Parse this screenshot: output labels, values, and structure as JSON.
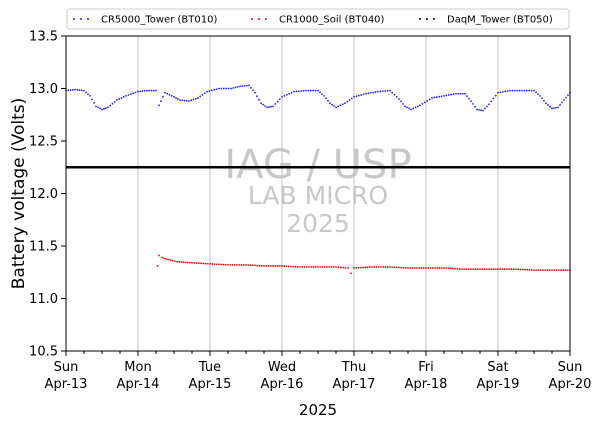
{
  "chart_data": {
    "type": "scatter",
    "xlabel": "2025",
    "ylabel": "Battery voltage (Volts)",
    "xlim": [
      "2025-04-13",
      "2025-04-20"
    ],
    "ylim": [
      10.5,
      13.5
    ],
    "yticks": [
      "10.5",
      "11.0",
      "11.5",
      "12.0",
      "12.5",
      "13.0",
      "13.5"
    ],
    "x_grid": true,
    "y_grid": false,
    "legend_position": "top",
    "xticks": [
      {
        "date": "2025-04-13",
        "day": "Sun",
        "label": "Apr-13"
      },
      {
        "date": "2025-04-14",
        "day": "Mon",
        "label": "Apr-14"
      },
      {
        "date": "2025-04-15",
        "day": "Tue",
        "label": "Apr-15"
      },
      {
        "date": "2025-04-16",
        "day": "Wed",
        "label": "Apr-16"
      },
      {
        "date": "2025-04-17",
        "day": "Thu",
        "label": "Apr-17"
      },
      {
        "date": "2025-04-18",
        "day": "Fri",
        "label": "Apr-18"
      },
      {
        "date": "2025-04-19",
        "day": "Sat",
        "label": "Apr-19"
      },
      {
        "date": "2025-04-20",
        "day": "Sun",
        "label": "Apr-20"
      }
    ],
    "reference_line": {
      "y": 12.25,
      "color": "#000000"
    },
    "watermark": [
      "IAG / USP",
      "LAB MICRO",
      "2025"
    ],
    "series": [
      {
        "name": "CR5000_Tower (BT010)",
        "color": "#1f1fff",
        "points": [
          [
            "2025-04-13 00:00",
            12.98
          ],
          [
            "2025-04-13 03:00",
            12.99
          ],
          [
            "2025-04-13 06:00",
            12.98
          ],
          [
            "2025-04-13 08:00",
            12.93
          ],
          [
            "2025-04-13 10:00",
            12.83
          ],
          [
            "2025-04-13 12:00",
            12.8
          ],
          [
            "2025-04-13 14:00",
            12.82
          ],
          [
            "2025-04-13 17:00",
            12.89
          ],
          [
            "2025-04-13 20:00",
            12.93
          ],
          [
            "2025-04-14 00:00",
            12.97
          ],
          [
            "2025-04-14 03:00",
            12.98
          ],
          [
            "2025-04-14 06:00",
            12.98
          ],
          [
            "2025-04-14 09:00",
            12.96
          ],
          [
            "2025-04-14 12:00",
            12.92
          ],
          [
            "2025-04-14 14:00",
            12.89
          ],
          [
            "2025-04-14 17:00",
            12.88
          ],
          [
            "2025-04-14 20:00",
            12.91
          ],
          [
            "2025-04-14 23:00",
            12.97
          ],
          [
            "2025-04-15 03:00",
            13.0
          ],
          [
            "2025-04-15 07:00",
            13.0
          ],
          [
            "2025-04-15 10:00",
            13.02
          ],
          [
            "2025-04-15 13:00",
            13.03
          ],
          [
            "2025-04-15 15:00",
            12.96
          ],
          [
            "2025-04-15 17:00",
            12.86
          ],
          [
            "2025-04-15 19:00",
            12.82
          ],
          [
            "2025-04-15 21:00",
            12.83
          ],
          [
            "2025-04-16 00:00",
            12.92
          ],
          [
            "2025-04-16 04:00",
            12.97
          ],
          [
            "2025-04-16 08:00",
            12.98
          ],
          [
            "2025-04-16 12:00",
            12.98
          ],
          [
            "2025-04-16 14:00",
            12.93
          ],
          [
            "2025-04-16 16:00",
            12.86
          ],
          [
            "2025-04-16 18:00",
            12.82
          ],
          [
            "2025-04-16 21:00",
            12.86
          ],
          [
            "2025-04-17 00:00",
            12.92
          ],
          [
            "2025-04-17 04:00",
            12.95
          ],
          [
            "2025-04-17 08:00",
            12.97
          ],
          [
            "2025-04-17 12:00",
            12.98
          ],
          [
            "2025-04-17 15:00",
            12.9
          ],
          [
            "2025-04-17 17:00",
            12.83
          ],
          [
            "2025-04-17 19:00",
            12.8
          ],
          [
            "2025-04-17 22:00",
            12.84
          ],
          [
            "2025-04-18 02:00",
            12.91
          ],
          [
            "2025-04-18 06:00",
            12.93
          ],
          [
            "2025-04-18 10:00",
            12.95
          ],
          [
            "2025-04-18 13:00",
            12.95
          ],
          [
            "2025-04-18 15:00",
            12.88
          ],
          [
            "2025-04-18 17:00",
            12.8
          ],
          [
            "2025-04-18 19:00",
            12.79
          ],
          [
            "2025-04-18 21:00",
            12.85
          ],
          [
            "2025-04-19 00:00",
            12.96
          ],
          [
            "2025-04-19 04:00",
            12.98
          ],
          [
            "2025-04-19 08:00",
            12.98
          ],
          [
            "2025-04-19 12:00",
            12.98
          ],
          [
            "2025-04-19 14:00",
            12.93
          ],
          [
            "2025-04-19 16:00",
            12.86
          ],
          [
            "2025-04-19 18:00",
            12.81
          ],
          [
            "2025-04-19 20:00",
            12.82
          ],
          [
            "2025-04-19 22:00",
            12.89
          ],
          [
            "2025-04-20 00:00",
            12.96
          ],
          [
            "2025-04-14 07:00",
            12.84
          ]
        ]
      },
      {
        "name": "CR1000_Soil (BT040)",
        "color": "#ff0000",
        "points": [
          [
            "2025-04-14 06:30",
            11.31
          ],
          [
            "2025-04-14 07:00",
            11.41
          ],
          [
            "2025-04-14 08:00",
            11.39
          ],
          [
            "2025-04-14 10:00",
            11.37
          ],
          [
            "2025-04-14 13:00",
            11.35
          ],
          [
            "2025-04-14 18:00",
            11.34
          ],
          [
            "2025-04-15 00:00",
            11.33
          ],
          [
            "2025-04-15 06:00",
            11.32
          ],
          [
            "2025-04-15 12:00",
            11.32
          ],
          [
            "2025-04-15 18:00",
            11.31
          ],
          [
            "2025-04-16 00:00",
            11.31
          ],
          [
            "2025-04-16 06:00",
            11.3
          ],
          [
            "2025-04-16 12:00",
            11.3
          ],
          [
            "2025-04-16 18:00",
            11.3
          ],
          [
            "2025-04-16 22:00",
            11.29
          ],
          [
            "2025-04-16 23:00",
            11.24
          ],
          [
            "2025-04-17 00:00",
            11.29
          ],
          [
            "2025-04-17 06:00",
            11.3
          ],
          [
            "2025-04-17 12:00",
            11.3
          ],
          [
            "2025-04-17 18:00",
            11.29
          ],
          [
            "2025-04-18 00:00",
            11.29
          ],
          [
            "2025-04-18 06:00",
            11.29
          ],
          [
            "2025-04-18 12:00",
            11.28
          ],
          [
            "2025-04-18 18:00",
            11.28
          ],
          [
            "2025-04-19 00:00",
            11.28
          ],
          [
            "2025-04-19 06:00",
            11.28
          ],
          [
            "2025-04-19 12:00",
            11.27
          ],
          [
            "2025-04-19 18:00",
            11.27
          ],
          [
            "2025-04-20 00:00",
            11.27
          ]
        ]
      },
      {
        "name": "DaqM_Tower (BT050)",
        "color": "#000000",
        "points": []
      }
    ]
  }
}
